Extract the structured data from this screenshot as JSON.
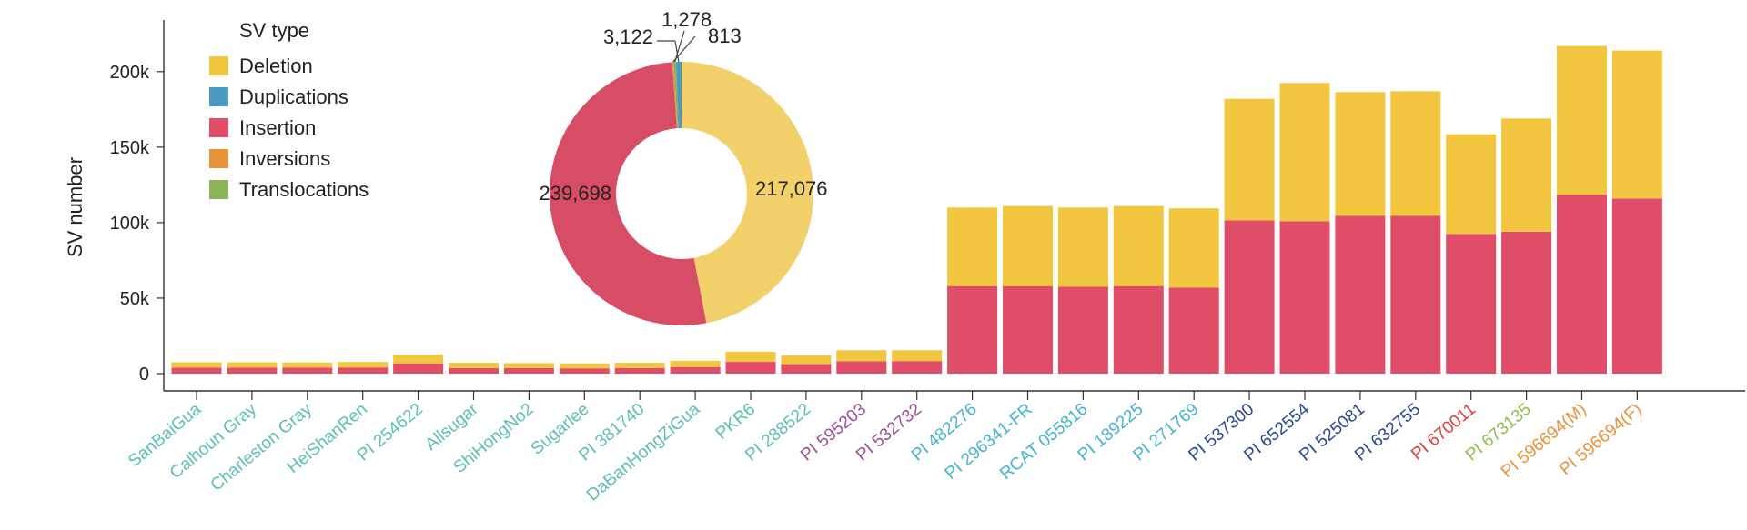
{
  "chart_data": [
    {
      "type": "bar",
      "stacked": true,
      "ylabel": "SV number",
      "ylim": [
        0,
        230000
      ],
      "yticks": [
        {
          "value": 0,
          "label": "0"
        },
        {
          "value": 50000,
          "label": "50k"
        },
        {
          "value": 100000,
          "label": "100k"
        },
        {
          "value": 150000,
          "label": "150k"
        },
        {
          "value": 200000,
          "label": "200k"
        }
      ],
      "grid": false,
      "categories": [
        "SanBaiGua",
        "Calhoun Gray",
        "Charleston Gray",
        "HeiShanRen",
        "PI 254622",
        "Allsugar",
        "ShiHongNo2",
        "Sugarlee",
        "PI 381740",
        "DaBanHongZiGua",
        "PKR6",
        "PI 288522",
        "PI 595203",
        "PI 532732",
        "PI 482276",
        "PI 296341-FR",
        "RCAT 055816",
        "PI 189225",
        "PI 271769",
        "PI 537300",
        "PI 652554",
        "PI 525081",
        "PI 632755",
        "PI 670011",
        "PI 673135",
        "PI 596694(M)",
        "PI 596694(F)"
      ],
      "category_colors": [
        "#5bbfb5",
        "#5bbfb5",
        "#5bbfb5",
        "#5bbfb5",
        "#5bbfb5",
        "#5bbfb5",
        "#5bbfb5",
        "#5bbfb5",
        "#5bbfb5",
        "#5bbfb5",
        "#5bbfb5",
        "#5bbfb5",
        "#9b4f96",
        "#9b4f96",
        "#43b3cf",
        "#43b3cf",
        "#43b3cf",
        "#43b3cf",
        "#43b3cf",
        "#2b4a8c",
        "#2b4a8c",
        "#2b4a8c",
        "#2b4a8c",
        "#d9433b",
        "#8fbf4a",
        "#e8923a",
        "#e8923a"
      ],
      "series": [
        {
          "name": "Insertion",
          "color": "#e04d69",
          "values": [
            4000,
            3900,
            3900,
            4100,
            6800,
            3700,
            3600,
            3500,
            3700,
            4300,
            7800,
            6300,
            8200,
            8300,
            58000,
            58000,
            57500,
            58000,
            57000,
            101500,
            101000,
            104500,
            104500,
            92500,
            94000,
            118500,
            116000
          ]
        },
        {
          "name": "Deletion",
          "color": "#f2c73f",
          "values": [
            3500,
            3600,
            3500,
            3600,
            5700,
            3500,
            3400,
            3300,
            3500,
            4200,
            6700,
            5700,
            7300,
            7200,
            52000,
            53000,
            52500,
            53000,
            52500,
            80500,
            91500,
            82000,
            82500,
            66000,
            75000,
            98500,
            98000
          ]
        }
      ]
    },
    {
      "type": "pie",
      "donut": true,
      "total_scale_note": "",
      "slices": [
        {
          "name": "Deletion",
          "value": 217076,
          "label": "217,076",
          "color": "#f2d16b"
        },
        {
          "name": "Insertion",
          "value": 239698,
          "label": "239,698",
          "color": "#d64d65"
        },
        {
          "name": "Inversions",
          "value": 813,
          "label": "813",
          "color": "#e8923a"
        },
        {
          "name": "Translocations",
          "value": 1278,
          "label": "1,278",
          "color": "#8ab35a"
        },
        {
          "name": "Duplications",
          "value": 3122,
          "label": "3,122",
          "color": "#4a9ac4"
        }
      ]
    }
  ],
  "legend": {
    "title": "SV type",
    "items": [
      {
        "label": "Deletion",
        "color": "#f2c73f"
      },
      {
        "label": "Duplications",
        "color": "#4a9ac4"
      },
      {
        "label": "Insertion",
        "color": "#e04d69"
      },
      {
        "label": "Inversions",
        "color": "#e8923a"
      },
      {
        "label": "Translocations",
        "color": "#8ab35a"
      }
    ]
  }
}
